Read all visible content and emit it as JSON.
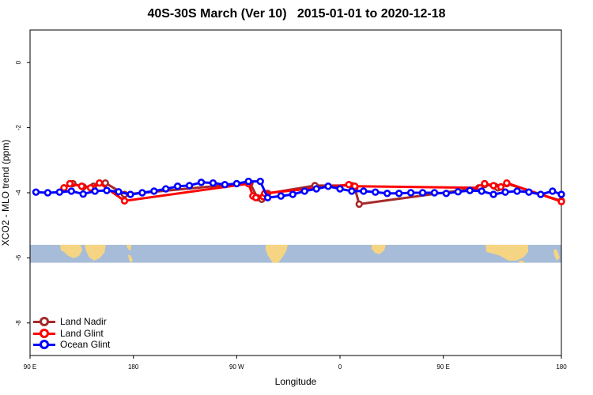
{
  "chart_data": {
    "type": "line",
    "title": "40S-30S March (Ver 10)   2015-01-01 to 2020-12-18",
    "xlabel": "Longitude",
    "ylabel": "XCO2 - MLO trend (ppm)",
    "xlim": [
      20,
      380
    ],
    "ylim": [
      -9,
      1
    ],
    "x_ticks": [
      {
        "value": 20,
        "label": "90 E"
      },
      {
        "value": 90,
        "label": "180"
      },
      {
        "value": 160,
        "label": "90 W"
      },
      {
        "value": 230,
        "label": "0"
      },
      {
        "value": 300,
        "label": "90 E"
      },
      {
        "value": 380,
        "label": "180"
      }
    ],
    "y_ticks": [
      {
        "value": 0,
        "label": "0"
      },
      {
        "value": -2,
        "label": "-2"
      },
      {
        "value": -4,
        "label": "-4"
      },
      {
        "value": -6,
        "label": "-6"
      },
      {
        "value": -8,
        "label": "-8"
      }
    ],
    "grid": false,
    "legend_position": "bottom-left",
    "map_band": {
      "y_range": [
        -6.15,
        -5.6
      ],
      "ocean_color": "#a7bcd8",
      "land_color": "#f5d584"
    },
    "series": [
      {
        "name": "Land Nadir",
        "color": "#a52a2a",
        "points": [
          [
            43,
            -3.85
          ],
          [
            49,
            -3.72
          ],
          [
            56,
            -3.82
          ],
          [
            63,
            -3.8
          ],
          [
            71,
            -3.7
          ],
          [
            84,
            -4.05
          ],
          [
            169,
            -3.7
          ],
          [
            174,
            -4.15
          ],
          [
            177,
            -4.2
          ],
          [
            181,
            -4.02
          ],
          [
            213,
            -3.78
          ],
          [
            238,
            -3.78
          ],
          [
            240,
            -3.85
          ],
          [
            243,
            -4.35
          ],
          [
            324,
            -3.85
          ],
          [
            328,
            -3.75
          ],
          [
            335,
            -3.8
          ],
          [
            337,
            -3.85
          ],
          [
            343,
            -3.72
          ],
          [
            380,
            -4.25
          ]
        ]
      },
      {
        "name": "Land Glint",
        "color": "#ff0000",
        "points": [
          [
            43,
            -3.85
          ],
          [
            47,
            -3.72
          ],
          [
            55,
            -3.8
          ],
          [
            61,
            -3.85
          ],
          [
            67,
            -3.7
          ],
          [
            84,
            -4.25
          ],
          [
            168,
            -3.72
          ],
          [
            171,
            -4.1
          ],
          [
            173,
            -4.15
          ],
          [
            178,
            -4.12
          ],
          [
            179,
            -4.02
          ],
          [
            236,
            -3.75
          ],
          [
            240,
            -3.8
          ],
          [
            325,
            -3.85
          ],
          [
            328,
            -3.72
          ],
          [
            334,
            -3.78
          ],
          [
            339,
            -3.82
          ],
          [
            343,
            -3.7
          ],
          [
            380,
            -4.27
          ]
        ]
      },
      {
        "name": "Ocean Glint",
        "color": "#0000ff",
        "points": [
          [
            24,
            -3.98
          ],
          [
            32,
            -4.0
          ],
          [
            40,
            -3.98
          ],
          [
            48,
            -3.95
          ],
          [
            56,
            -4.04
          ],
          [
            64,
            -3.95
          ],
          [
            72,
            -3.93
          ],
          [
            80,
            -3.97
          ],
          [
            88,
            -4.05
          ],
          [
            96,
            -4.0
          ],
          [
            104,
            -3.95
          ],
          [
            112,
            -3.88
          ],
          [
            120,
            -3.8
          ],
          [
            128,
            -3.78
          ],
          [
            136,
            -3.68
          ],
          [
            144,
            -3.7
          ],
          [
            152,
            -3.75
          ],
          [
            160,
            -3.72
          ],
          [
            168,
            -3.65
          ],
          [
            176,
            -3.65
          ],
          [
            181,
            -4.15
          ],
          [
            190,
            -4.1
          ],
          [
            198,
            -4.05
          ],
          [
            206,
            -3.95
          ],
          [
            214,
            -3.88
          ],
          [
            222,
            -3.8
          ],
          [
            230,
            -3.88
          ],
          [
            238,
            -3.95
          ],
          [
            246,
            -3.95
          ],
          [
            254,
            -3.98
          ],
          [
            262,
            -4.02
          ],
          [
            270,
            -4.02
          ],
          [
            278,
            -4.0
          ],
          [
            286,
            -4.0
          ],
          [
            294,
            -4.0
          ],
          [
            302,
            -4.02
          ],
          [
            310,
            -3.97
          ],
          [
            318,
            -3.93
          ],
          [
            326,
            -3.95
          ],
          [
            334,
            -4.05
          ],
          [
            342,
            -3.98
          ],
          [
            350,
            -3.95
          ],
          [
            358,
            -3.98
          ],
          [
            366,
            -4.05
          ],
          [
            374,
            -3.95
          ],
          [
            380,
            -4.05
          ]
        ]
      }
    ]
  }
}
